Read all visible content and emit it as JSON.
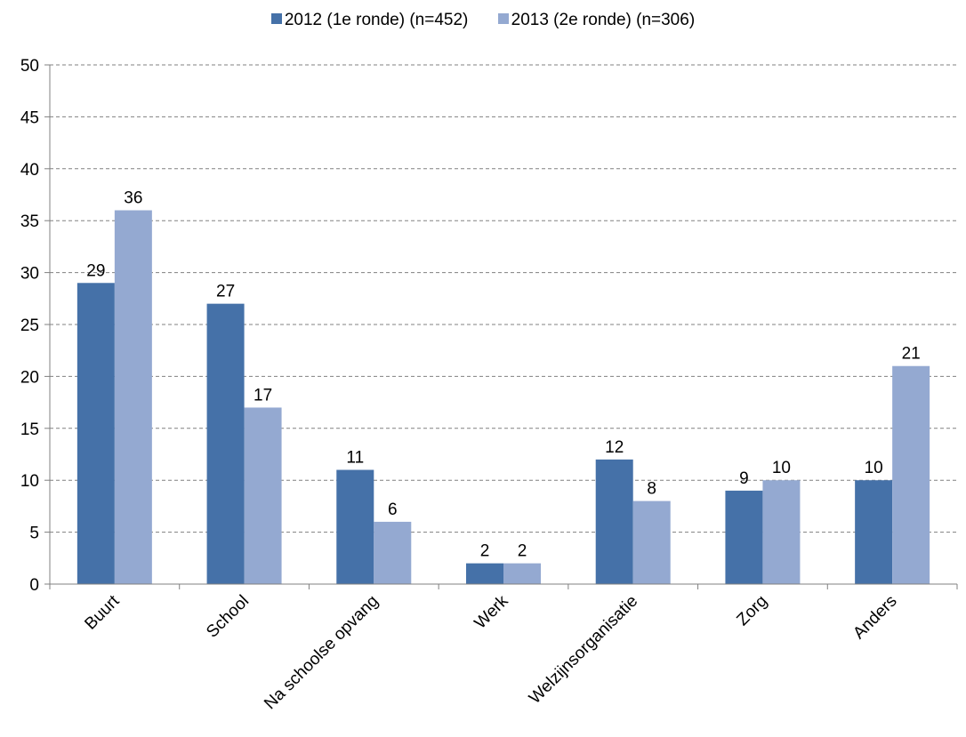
{
  "chart_data": {
    "type": "bar",
    "categories": [
      "Buurt",
      "School",
      "Na schoolse opvang",
      "Werk",
      "Welzijnsorganisatie",
      "Zorg",
      "Anders"
    ],
    "series": [
      {
        "name": "2012 (1e ronde) (n=452)",
        "color": "#4571A8",
        "values": [
          29,
          27,
          11,
          2,
          12,
          9,
          10
        ]
      },
      {
        "name": "2013 (2e ronde) (n=306)",
        "color": "#94A9D1",
        "values": [
          36,
          17,
          6,
          2,
          8,
          10,
          21
        ]
      }
    ],
    "yticks": [
      0,
      5,
      10,
      15,
      20,
      25,
      30,
      35,
      40,
      45,
      50
    ],
    "ylim": [
      0,
      50
    ],
    "grid": true,
    "legend_position": "top"
  }
}
